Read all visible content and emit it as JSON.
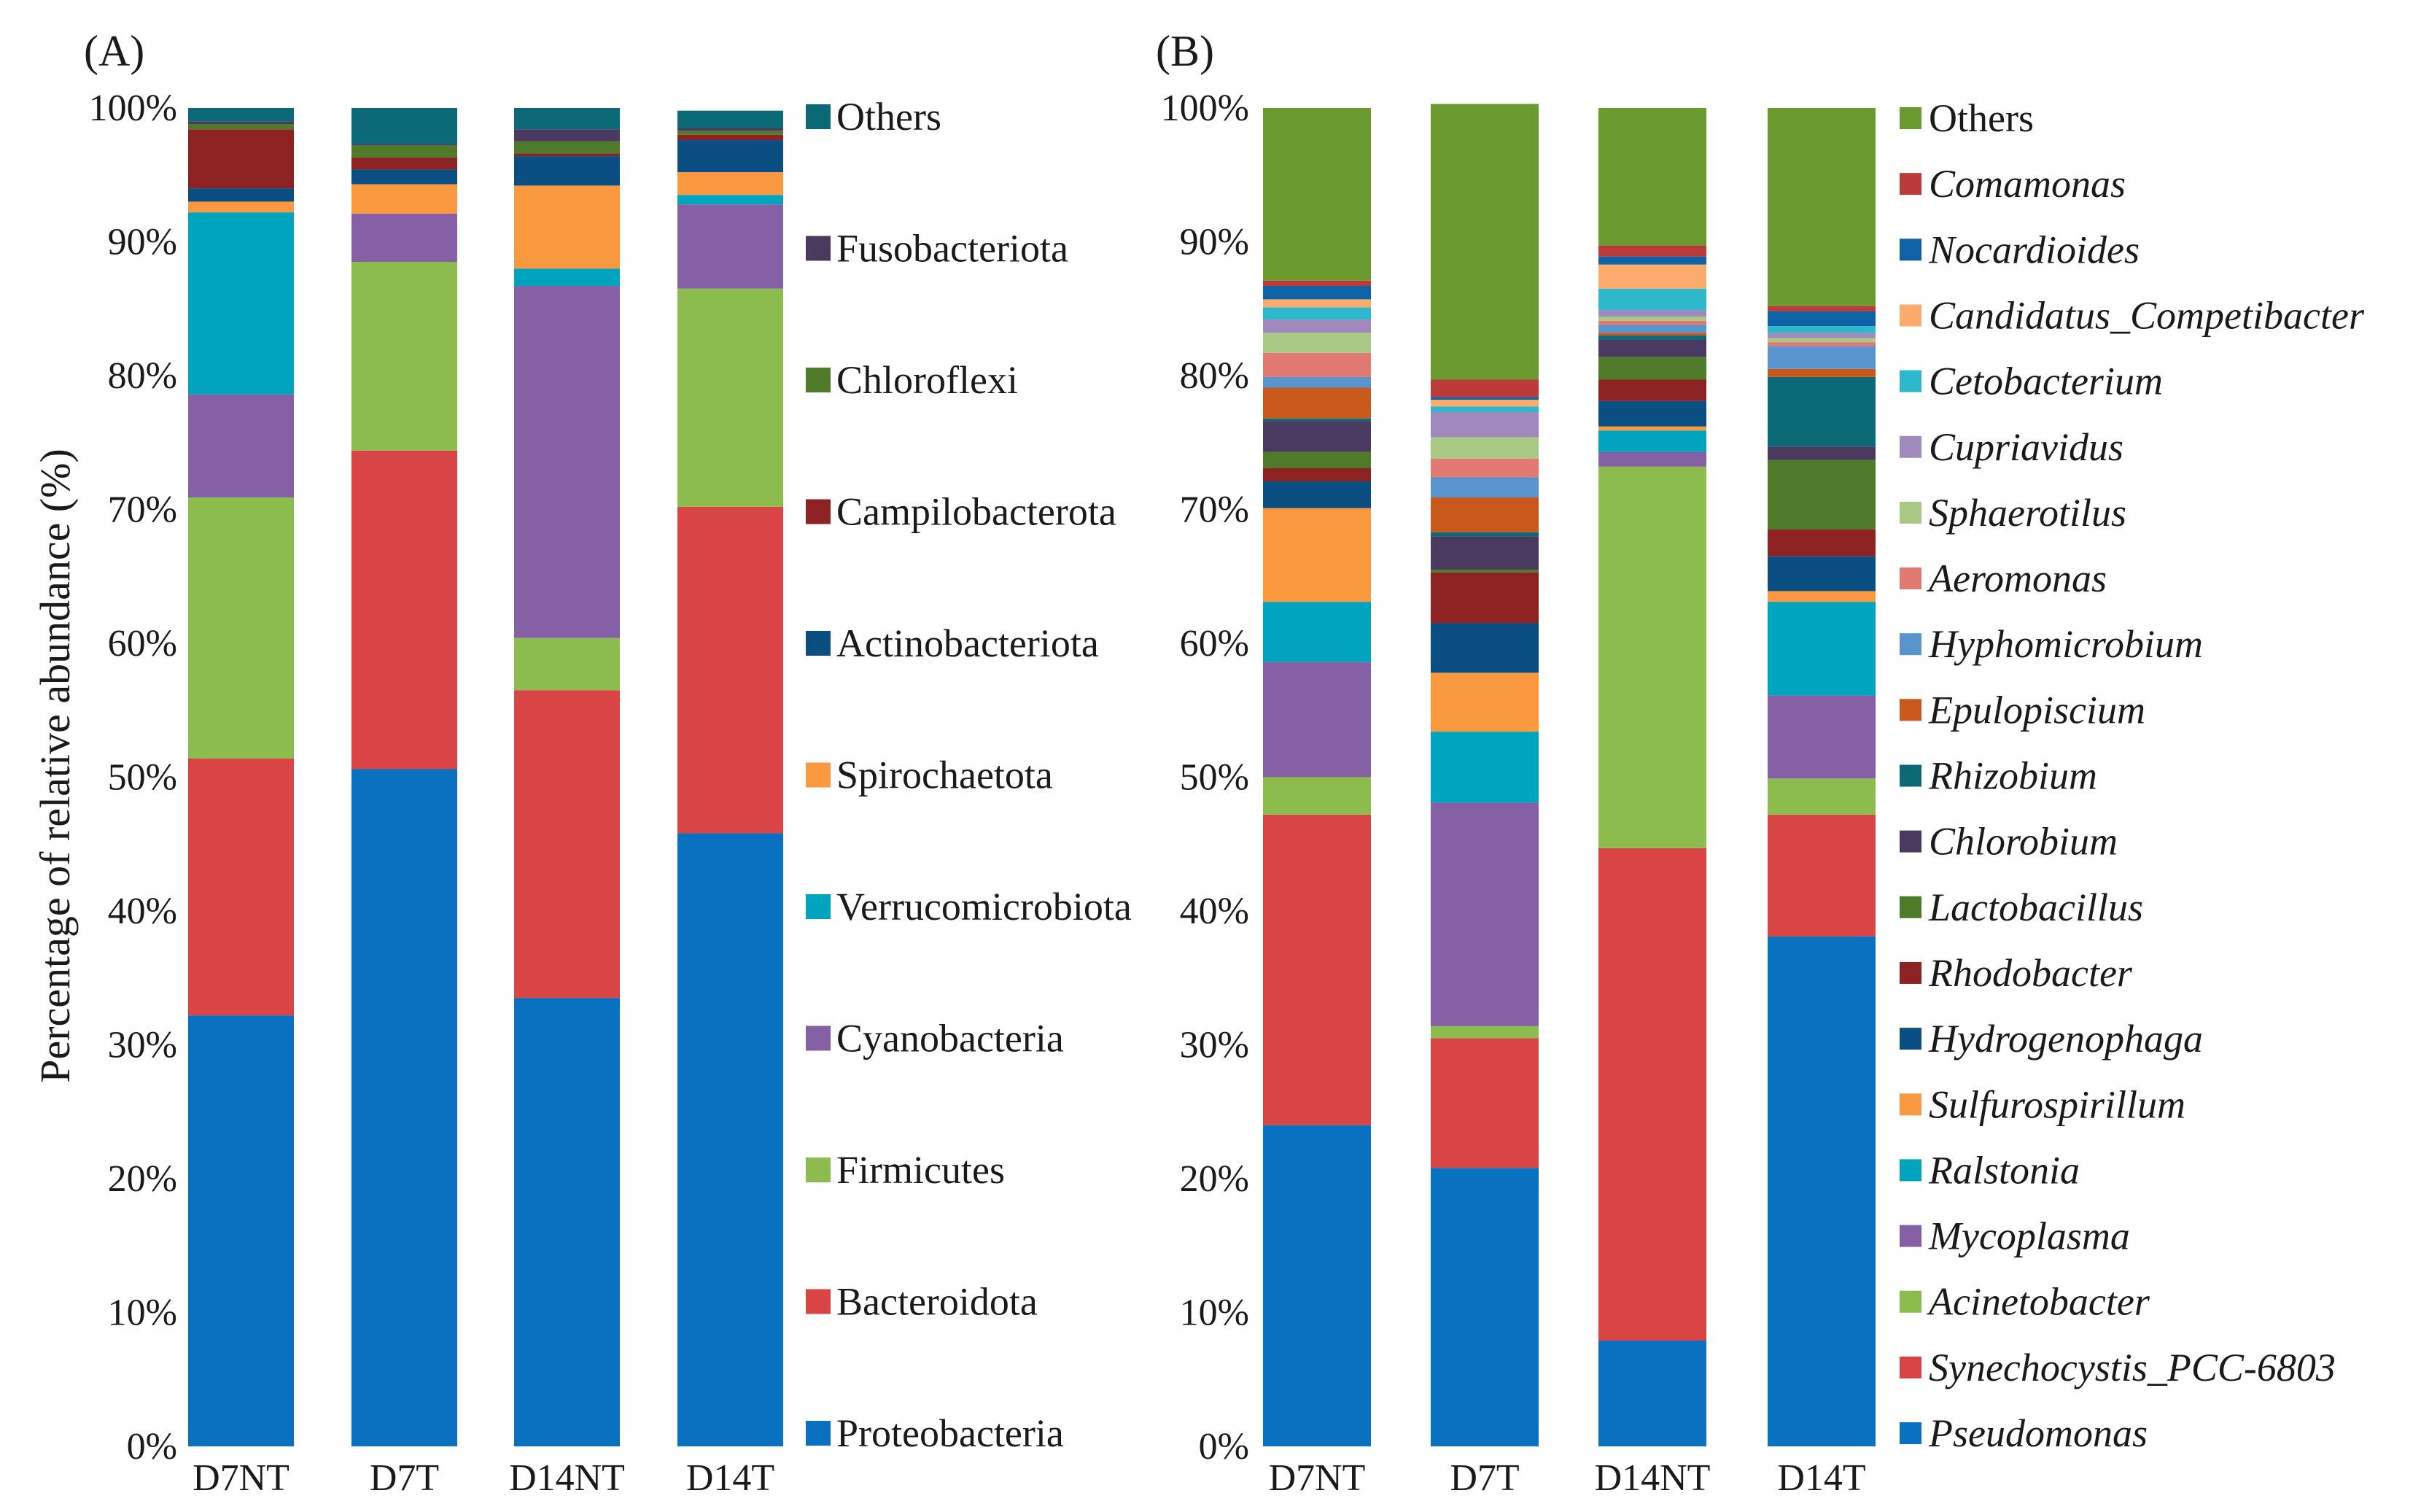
{
  "chart_data": [
    {
      "type": "bar",
      "stacked": true,
      "panel_label": "(A)",
      "ylabel": "Percentage of relative abundance (%)",
      "xlabel": "",
      "ylim": [
        0,
        100
      ],
      "yticks": [
        "0%",
        "10%",
        "20%",
        "30%",
        "40%",
        "50%",
        "60%",
        "70%",
        "80%",
        "90%",
        "100%"
      ],
      "categories": [
        "D7NT",
        "D7T",
        "D14NT",
        "D14T"
      ],
      "legend_position": "right",
      "series": [
        {
          "name": "Proteobacteria",
          "color": "#0a70c0",
          "values": [
            32.2,
            50.6,
            33.5,
            45.8
          ]
        },
        {
          "name": "Bacteroidota",
          "color": "#d94545",
          "values": [
            19.2,
            23.8,
            23.0,
            24.4
          ]
        },
        {
          "name": "Firmicutes",
          "color": "#8cbc4e",
          "values": [
            19.5,
            14.1,
            3.9,
            16.3
          ]
        },
        {
          "name": "Cyanobacteria",
          "color": "#8560a4",
          "values": [
            7.7,
            3.6,
            26.3,
            6.3
          ]
        },
        {
          "name": "Verrucomicrobiota",
          "color": "#00a4be",
          "values": [
            13.6,
            0.0,
            1.3,
            0.7
          ]
        },
        {
          "name": "Spirochaetota",
          "color": "#fb9940",
          "values": [
            0.8,
            2.2,
            6.2,
            1.7
          ]
        },
        {
          "name": "Actinobacteriota",
          "color": "#0b4e82",
          "values": [
            1.0,
            1.1,
            2.2,
            2.4
          ]
        },
        {
          "name": "Campilobacterota",
          "color": "#8c2222",
          "values": [
            4.4,
            0.9,
            0.2,
            0.4
          ]
        },
        {
          "name": "Chloroflexi",
          "color": "#4e7a2a",
          "values": [
            0.4,
            0.9,
            0.9,
            0.3
          ]
        },
        {
          "name": "Fusobacteriota",
          "color": "#4a3a60",
          "values": [
            0.2,
            0.1,
            0.9,
            0.2
          ]
        },
        {
          "name": "Others",
          "color": "#0c6a76",
          "values": [
            1.0,
            2.7,
            1.6,
            1.3
          ]
        }
      ]
    },
    {
      "type": "bar",
      "stacked": true,
      "panel_label": "(B)",
      "ylabel": "",
      "xlabel": "",
      "ylim": [
        0,
        100
      ],
      "yticks": [
        "0%",
        "10%",
        "20%",
        "30%",
        "40%",
        "50%",
        "60%",
        "70%",
        "80%",
        "90%",
        "100%"
      ],
      "categories": [
        "D7NT",
        "D7T",
        "D14NT",
        "D14T"
      ],
      "legend_position": "right",
      "legend_italic": true,
      "series": [
        {
          "name": "Pseudomonas",
          "color": "#0a70c0",
          "values": [
            24.0,
            20.8,
            7.9,
            38.1
          ]
        },
        {
          "name": "Synechocystis_PCC-6803",
          "color": "#d94545",
          "values": [
            23.2,
            9.7,
            36.8,
            9.1
          ]
        },
        {
          "name": "Acinetobacter",
          "color": "#8cbc4e",
          "values": [
            2.8,
            0.9,
            28.5,
            2.7
          ]
        },
        {
          "name": "Mycoplasma",
          "color": "#8560a4",
          "values": [
            8.6,
            16.7,
            1.1,
            6.2
          ]
        },
        {
          "name": "Ralstonia",
          "color": "#00a4be",
          "values": [
            4.5,
            5.3,
            1.6,
            7.0
          ]
        },
        {
          "name": "Sulfurospirillum",
          "color": "#fb9940",
          "values": [
            7.0,
            4.4,
            0.3,
            0.8
          ]
        },
        {
          "name": "Hydrogenophaga",
          "color": "#0b4e82",
          "values": [
            2.0,
            3.7,
            1.9,
            2.6
          ]
        },
        {
          "name": "Rhodobacter",
          "color": "#8c2222",
          "values": [
            1.0,
            3.8,
            1.6,
            2.0
          ]
        },
        {
          "name": "Lactobacillus",
          "color": "#4e7a2a",
          "values": [
            1.2,
            0.2,
            1.7,
            5.2
          ]
        },
        {
          "name": "Chlorobium",
          "color": "#4a3a60",
          "values": [
            2.3,
            2.5,
            1.3,
            1.0
          ]
        },
        {
          "name": "Rhizobium",
          "color": "#0c6a76",
          "values": [
            0.2,
            0.3,
            0.3,
            5.2
          ]
        },
        {
          "name": "Epulopiscium",
          "color": "#c8581c",
          "values": [
            2.3,
            2.6,
            0.2,
            0.6
          ]
        },
        {
          "name": "Hyphomicrobium",
          "color": "#5a94cc",
          "values": [
            0.8,
            1.5,
            0.6,
            1.7
          ]
        },
        {
          "name": "Aeromonas",
          "color": "#e07a72",
          "values": [
            1.8,
            1.4,
            0.3,
            0.3
          ]
        },
        {
          "name": "Sphaerotilus",
          "color": "#a8c884",
          "values": [
            1.5,
            1.6,
            0.3,
            0.3
          ]
        },
        {
          "name": "Cupriavidus",
          "color": "#a089bc",
          "values": [
            1.0,
            1.9,
            0.5,
            0.4
          ]
        },
        {
          "name": "Cetobacterium",
          "color": "#2eb8cc",
          "values": [
            0.9,
            0.4,
            1.6,
            0.5
          ]
        },
        {
          "name": "Candidatus_Competibacter",
          "color": "#fbab6c",
          "values": [
            0.6,
            0.5,
            1.8,
            0.0
          ]
        },
        {
          "name": "Nocardioides",
          "color": "#0e62a6",
          "values": [
            1.0,
            0.2,
            0.6,
            1.1
          ]
        },
        {
          "name": "Comamonas",
          "color": "#bc3a3a",
          "values": [
            0.4,
            1.3,
            0.8,
            0.4
          ]
        },
        {
          "name": "Others",
          "color": "#6a9a30",
          "values": [
            12.9,
            20.6,
            10.3,
            14.8
          ]
        }
      ]
    }
  ]
}
